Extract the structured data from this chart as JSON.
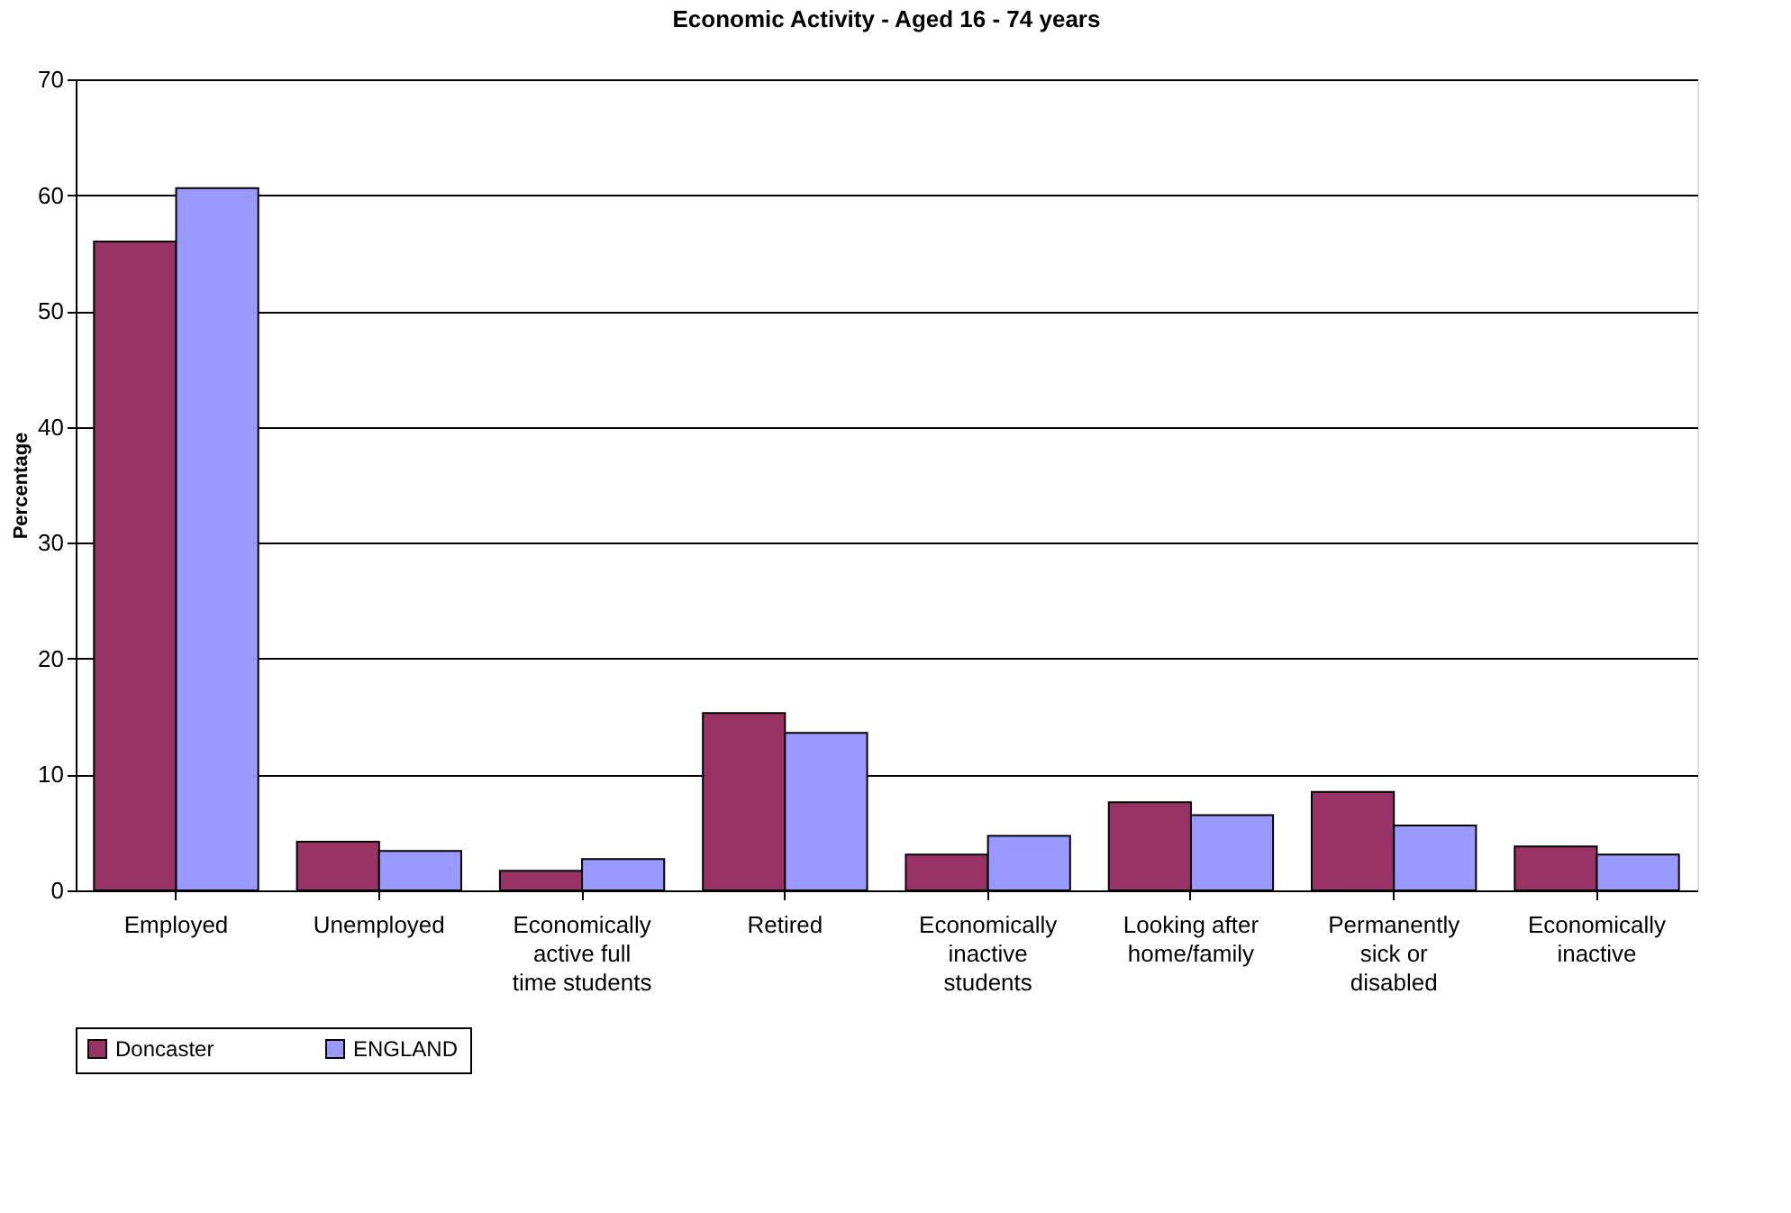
{
  "chart_data": {
    "type": "bar",
    "title": "Economic Activity - Aged 16 - 74 years",
    "ylabel": "Percentage",
    "categories": [
      "Employed",
      "Unemployed",
      "Economically active full time students",
      "Retired",
      "Economically inactive students",
      "Looking after home/family",
      "Permanently sick or disabled",
      "Economically inactive"
    ],
    "series": [
      {
        "name": "Doncaster",
        "color": "#993366",
        "values": [
          56.0,
          4.2,
          1.7,
          15.3,
          3.1,
          7.6,
          8.5,
          3.8
        ]
      },
      {
        "name": "ENGLAND",
        "color": "#9999ff",
        "values": [
          60.6,
          3.4,
          2.7,
          13.6,
          4.7,
          6.5,
          5.6,
          3.1
        ]
      }
    ],
    "ylim": [
      0,
      70
    ],
    "yticks": [
      0,
      10,
      20,
      30,
      40,
      50,
      60,
      70
    ],
    "grid": "y",
    "legend": "bottom"
  }
}
